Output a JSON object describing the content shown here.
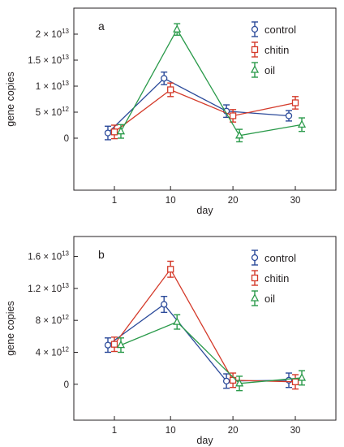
{
  "chart_data": [
    {
      "type": "line",
      "panel_label": "a",
      "xlabel": "day",
      "ylabel": "gene copies",
      "x_ticks": [
        1,
        10,
        20,
        30
      ],
      "xlim": [
        -5.5,
        36.5
      ],
      "ylim": [
        -10000000000000,
        25000000000000
      ],
      "y_ticks": [
        {
          "value": 0,
          "label": "0"
        },
        {
          "value": 5000000000000,
          "label": "5 × 10",
          "exp": "12"
        },
        {
          "value": 10000000000000,
          "label": "1 × 10",
          "exp": "13"
        },
        {
          "value": 15000000000000,
          "label": "1.5 × 10",
          "exp": "13"
        },
        {
          "value": 20000000000000,
          "label": "2 × 10",
          "exp": "13"
        }
      ],
      "grid": false,
      "legend_position": "top-right",
      "series": [
        {
          "name": "control",
          "marker": "circle",
          "color": "#2b4a9a",
          "x": [
            1,
            10,
            20,
            30
          ],
          "y": [
            1000000000000,
            11500000000000,
            5200000000000,
            4300000000000
          ],
          "err": [
            1300000000000,
            1200000000000,
            1200000000000,
            1000000000000
          ]
        },
        {
          "name": "chitin",
          "marker": "square",
          "color": "#d43a2a",
          "x": [
            1,
            10,
            20,
            30
          ],
          "y": [
            1200000000000,
            9300000000000,
            4300000000000,
            6800000000000
          ],
          "err": [
            1300000000000,
            1300000000000,
            1200000000000,
            1200000000000
          ]
        },
        {
          "name": "oil",
          "marker": "triangle",
          "color": "#2a9a4a",
          "x": [
            1,
            10,
            20,
            30
          ],
          "y": [
            1300000000000,
            20900000000000,
            500000000000,
            2600000000000
          ],
          "err": [
            1300000000000,
            1100000000000,
            1200000000000,
            1300000000000
          ]
        }
      ]
    },
    {
      "type": "line",
      "panel_label": "b",
      "xlabel": "day",
      "ylabel": "gene copies",
      "x_ticks": [
        1,
        10,
        20,
        30
      ],
      "xlim": [
        -5.5,
        36.5
      ],
      "ylim": [
        -4500000000000,
        18500000000000
      ],
      "y_ticks": [
        {
          "value": 0,
          "label": "0"
        },
        {
          "value": 4000000000000,
          "label": "4 × 10",
          "exp": "12"
        },
        {
          "value": 8000000000000,
          "label": "8 × 10",
          "exp": "12"
        },
        {
          "value": 12000000000000,
          "label": "1.2 × 10",
          "exp": "13"
        },
        {
          "value": 16000000000000,
          "label": "1.6 × 10",
          "exp": "13"
        }
      ],
      "grid": false,
      "legend_position": "top-right",
      "series": [
        {
          "name": "control",
          "marker": "circle",
          "color": "#2b4a9a",
          "x": [
            1,
            10,
            20,
            30
          ],
          "y": [
            4900000000000,
            10000000000000,
            400000000000,
            500000000000
          ],
          "err": [
            900000000000,
            1000000000000,
            900000000000,
            900000000000
          ]
        },
        {
          "name": "chitin",
          "marker": "square",
          "color": "#d43a2a",
          "x": [
            1,
            10,
            20,
            30
          ],
          "y": [
            5000000000000,
            14400000000000,
            500000000000,
            300000000000
          ],
          "err": [
            900000000000,
            1000000000000,
            900000000000,
            900000000000
          ]
        },
        {
          "name": "oil",
          "marker": "triangle",
          "color": "#2a9a4a",
          "x": [
            1,
            10,
            20,
            30
          ],
          "y": [
            4900000000000,
            7800000000000,
            100000000000,
            800000000000
          ],
          "err": [
            900000000000,
            900000000000,
            900000000000,
            900000000000
          ]
        }
      ]
    }
  ]
}
